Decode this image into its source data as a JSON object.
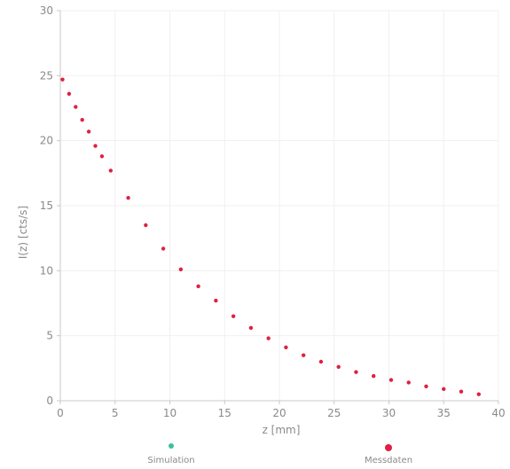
{
  "chart_data": {
    "type": "scatter",
    "xlabel": "z [mm]",
    "ylabel": "I(z) [cts/s]",
    "xlim": [
      0,
      40
    ],
    "ylim": [
      0,
      30
    ],
    "x_ticks": [
      "0",
      "5",
      "10",
      "15",
      "20",
      "25",
      "30",
      "35",
      "40"
    ],
    "y_ticks": [
      "0",
      "5",
      "10",
      "15",
      "20",
      "25",
      "30"
    ],
    "series": [
      {
        "name": "Simulation",
        "color": "#3fbf9f",
        "points": []
      },
      {
        "name": "Messdaten",
        "color": "#e02040",
        "points": [
          {
            "x": 0.2,
            "y": 24.7
          },
          {
            "x": 0.8,
            "y": 23.6
          },
          {
            "x": 1.4,
            "y": 22.6
          },
          {
            "x": 2.0,
            "y": 21.6
          },
          {
            "x": 2.6,
            "y": 20.7
          },
          {
            "x": 3.2,
            "y": 19.6
          },
          {
            "x": 3.8,
            "y": 18.8
          },
          {
            "x": 4.6,
            "y": 17.7
          },
          {
            "x": 6.2,
            "y": 15.6
          },
          {
            "x": 7.8,
            "y": 13.5
          },
          {
            "x": 9.4,
            "y": 11.7
          },
          {
            "x": 11.0,
            "y": 10.1
          },
          {
            "x": 12.6,
            "y": 8.8
          },
          {
            "x": 14.2,
            "y": 7.7
          },
          {
            "x": 15.8,
            "y": 6.5
          },
          {
            "x": 17.4,
            "y": 5.6
          },
          {
            "x": 19.0,
            "y": 4.8
          },
          {
            "x": 20.6,
            "y": 4.1
          },
          {
            "x": 22.2,
            "y": 3.5
          },
          {
            "x": 23.8,
            "y": 3.0
          },
          {
            "x": 25.4,
            "y": 2.6
          },
          {
            "x": 27.0,
            "y": 2.2
          },
          {
            "x": 28.6,
            "y": 1.9
          },
          {
            "x": 30.2,
            "y": 1.6
          },
          {
            "x": 31.8,
            "y": 1.4
          },
          {
            "x": 33.4,
            "y": 1.1
          },
          {
            "x": 35.0,
            "y": 0.9
          },
          {
            "x": 36.6,
            "y": 0.7
          },
          {
            "x": 38.2,
            "y": 0.5
          }
        ]
      }
    ],
    "grid": true,
    "legend_position": "bottom"
  },
  "legend": {
    "items": [
      {
        "label": "Simulation",
        "color": "#3fbf9f"
      },
      {
        "label": "Messdaten",
        "color": "#e02040"
      }
    ]
  },
  "colors": {
    "axis": "#c8c8c8",
    "grid": "#f0f0f0"
  }
}
